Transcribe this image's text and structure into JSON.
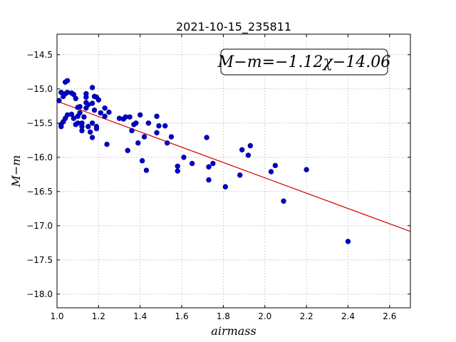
{
  "chart_data": {
    "type": "scatter",
    "title": "2021-10-15_235811",
    "xlabel": "airmass",
    "ylabel": "M−m",
    "xlim": [
      1.0,
      2.7
    ],
    "ylim": [
      -18.2,
      -14.2
    ],
    "x_ticks": [
      "1.0",
      "1.2",
      "1.4",
      "1.6",
      "1.8",
      "2.0",
      "2.2",
      "2.4",
      "2.6"
    ],
    "y_ticks": [
      "-14.5",
      "-15.0",
      "-15.5",
      "-16.0",
      "-16.5",
      "-17.0",
      "-17.5",
      "-18.0"
    ],
    "grid": true,
    "annotation": "M−m=−1.12χ−14.06",
    "fit": {
      "slope": -1.12,
      "intercept": -14.06
    },
    "colors": {
      "points": "#0000cc",
      "points_edge": "#000080",
      "fit_line": "#dd0000",
      "grid": "#999999"
    },
    "points": [
      [
        1.01,
        -15.17
      ],
      [
        1.02,
        -15.05
      ],
      [
        1.02,
        -15.55
      ],
      [
        1.02,
        -15.52
      ],
      [
        1.03,
        -15.11
      ],
      [
        1.03,
        -15.48
      ],
      [
        1.04,
        -14.9
      ],
      [
        1.04,
        -15.07
      ],
      [
        1.04,
        -15.43
      ],
      [
        1.05,
        -14.88
      ],
      [
        1.05,
        -15.05
      ],
      [
        1.05,
        -15.38
      ],
      [
        1.07,
        -15.06
      ],
      [
        1.07,
        -15.37
      ],
      [
        1.08,
        -15.43
      ],
      [
        1.08,
        -15.08
      ],
      [
        1.09,
        -15.14
      ],
      [
        1.09,
        -15.52
      ],
      [
        1.1,
        -15.4
      ],
      [
        1.1,
        -15.27
      ],
      [
        1.1,
        -15.5
      ],
      [
        1.11,
        -15.26
      ],
      [
        1.11,
        -15.35
      ],
      [
        1.12,
        -15.5
      ],
      [
        1.12,
        -15.55
      ],
      [
        1.12,
        -15.61
      ],
      [
        1.13,
        -15.41
      ],
      [
        1.14,
        -15.07
      ],
      [
        1.14,
        -15.12
      ],
      [
        1.14,
        -15.2
      ],
      [
        1.14,
        -15.28
      ],
      [
        1.15,
        -15.55
      ],
      [
        1.15,
        -15.23
      ],
      [
        1.16,
        -15.63
      ],
      [
        1.17,
        -15.71
      ],
      [
        1.17,
        -14.98
      ],
      [
        1.17,
        -15.5
      ],
      [
        1.17,
        -15.21
      ],
      [
        1.18,
        -15.11
      ],
      [
        1.18,
        -15.31
      ],
      [
        1.19,
        -15.12
      ],
      [
        1.19,
        -15.55
      ],
      [
        1.19,
        -15.58
      ],
      [
        1.2,
        -15.16
      ],
      [
        1.21,
        -15.35
      ],
      [
        1.23,
        -15.4
      ],
      [
        1.23,
        -15.28
      ],
      [
        1.24,
        -15.81
      ],
      [
        1.25,
        -15.34
      ],
      [
        1.3,
        -15.43
      ],
      [
        1.32,
        -15.44
      ],
      [
        1.33,
        -15.41
      ],
      [
        1.34,
        -15.9
      ],
      [
        1.35,
        -15.41
      ],
      [
        1.36,
        -15.61
      ],
      [
        1.37,
        -15.52
      ],
      [
        1.38,
        -15.5
      ],
      [
        1.39,
        -15.79
      ],
      [
        1.4,
        -15.38
      ],
      [
        1.41,
        -16.05
      ],
      [
        1.42,
        -15.7
      ],
      [
        1.43,
        -16.19
      ],
      [
        1.44,
        -15.5
      ],
      [
        1.48,
        -15.4
      ],
      [
        1.48,
        -15.64
      ],
      [
        1.49,
        -15.54
      ],
      [
        1.52,
        -15.54
      ],
      [
        1.53,
        -15.79
      ],
      [
        1.55,
        -15.7
      ],
      [
        1.58,
        -16.13
      ],
      [
        1.58,
        -16.2
      ],
      [
        1.61,
        -16.0
      ],
      [
        1.65,
        -16.09
      ],
      [
        1.72,
        -15.71
      ],
      [
        1.73,
        -16.33
      ],
      [
        1.73,
        -16.14
      ],
      [
        1.75,
        -16.09
      ],
      [
        1.81,
        -16.43
      ],
      [
        1.88,
        -16.26
      ],
      [
        1.89,
        -15.89
      ],
      [
        1.92,
        -15.97
      ],
      [
        1.93,
        -15.83
      ],
      [
        2.03,
        -16.21
      ],
      [
        2.05,
        -16.12
      ],
      [
        2.09,
        -16.64
      ],
      [
        2.2,
        -16.18
      ],
      [
        2.4,
        -17.23
      ]
    ]
  }
}
